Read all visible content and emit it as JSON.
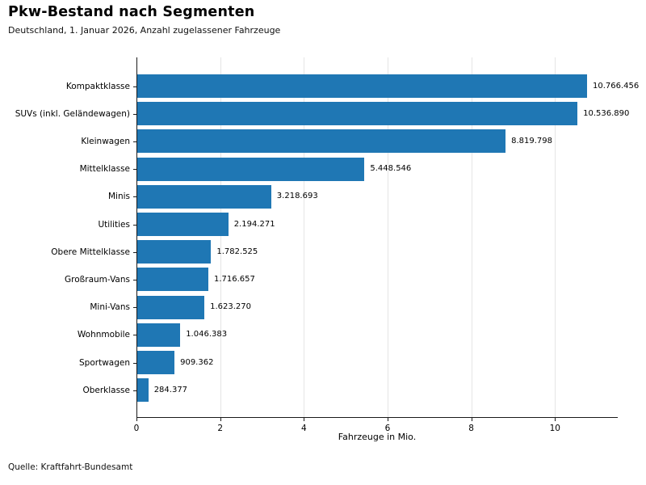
{
  "header": {
    "title": "Pkw-Bestand nach Segmenten",
    "subtitle": "Deutschland, 1. Januar 2026, Anzahl zugelassener Fahrzeuge"
  },
  "footer": {
    "source": "Quelle: Kraftfahrt-Bundesamt"
  },
  "chart_data": {
    "type": "bar",
    "orientation": "horizontal",
    "title": "Pkw-Bestand nach Segmenten",
    "subtitle": "Deutschland, 1. Januar 2026, Anzahl zugelassener Fahrzeuge",
    "categories": [
      "Kompaktklasse",
      "SUVs (inkl. Geländewagen)",
      "Kleinwagen",
      "Mittelklasse",
      "Minis",
      "Utilities",
      "Obere Mittelklasse",
      "Großraum-Vans",
      "Mini-Vans",
      "Wohnmobile",
      "Sportwagen",
      "Oberklasse"
    ],
    "values": [
      10766456,
      10536890,
      8819798,
      5448546,
      3218693,
      2194271,
      1782525,
      1716657,
      1623270,
      1046383,
      909362,
      284377
    ],
    "value_labels": [
      "10.766.456",
      "10.536.890",
      "8.819.798",
      "5.448.546",
      "3.218.693",
      "2.194.271",
      "1.782.525",
      "1.716.657",
      "1.623.270",
      "1.046.383",
      "909.362",
      "284.377"
    ],
    "values_unit": "Fahrzeuge (Anzahl)",
    "xlabel": "Fahrzeuge in Mio.",
    "xticks": [
      0,
      2,
      4,
      6,
      8,
      10
    ],
    "xlim": [
      0,
      11.5
    ],
    "grid": true,
    "legend": false,
    "bar_color": "#1f77b4",
    "gridline_color": "#e5e5e5",
    "source": "Quelle: Kraftfahrt-Bundesamt"
  }
}
